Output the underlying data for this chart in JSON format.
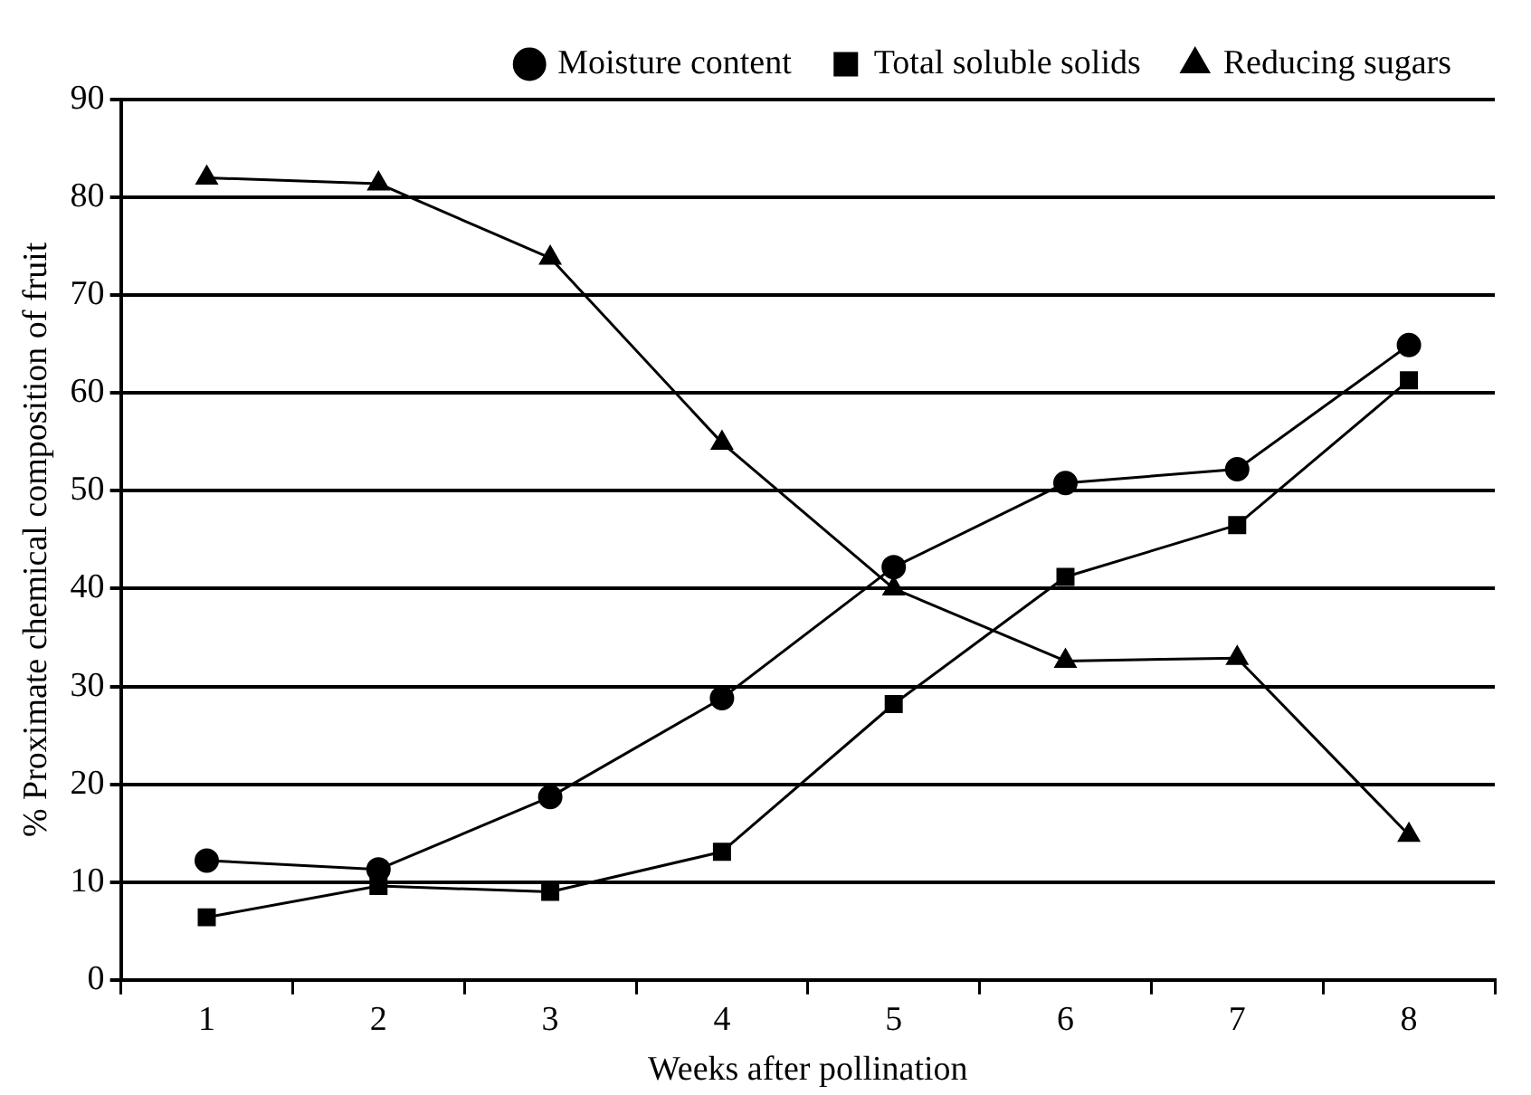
{
  "chart_data": {
    "type": "line",
    "xlabel": "Weeks after pollination",
    "ylabel": "% Proximate chemical composition of fruit",
    "categories": [
      "1",
      "2",
      "3",
      "4",
      "5",
      "6",
      "7",
      "8"
    ],
    "ylim": [
      0,
      90
    ],
    "yticks": [
      0,
      10,
      20,
      30,
      40,
      50,
      60,
      70,
      80,
      90
    ],
    "grid": "y",
    "legend": "top",
    "line_style": "solid",
    "series": [
      {
        "name": "Moisture content",
        "color": "#000000",
        "marker": "circle",
        "values": [
          12.2,
          11.3,
          18.7,
          28.8,
          42.2,
          50.8,
          52.2,
          64.9
        ]
      },
      {
        "name": "Total soluble solids",
        "color": "#000000",
        "marker": "square",
        "values": [
          6.4,
          9.6,
          9.0,
          13.1,
          28.2,
          41.2,
          46.5,
          61.3
        ]
      },
      {
        "name": "Reducing sugars",
        "color": "#000000",
        "marker": "triangle",
        "values": [
          82.0,
          81.4,
          73.8,
          54.9,
          40.0,
          32.6,
          32.9,
          14.8
        ]
      }
    ]
  }
}
